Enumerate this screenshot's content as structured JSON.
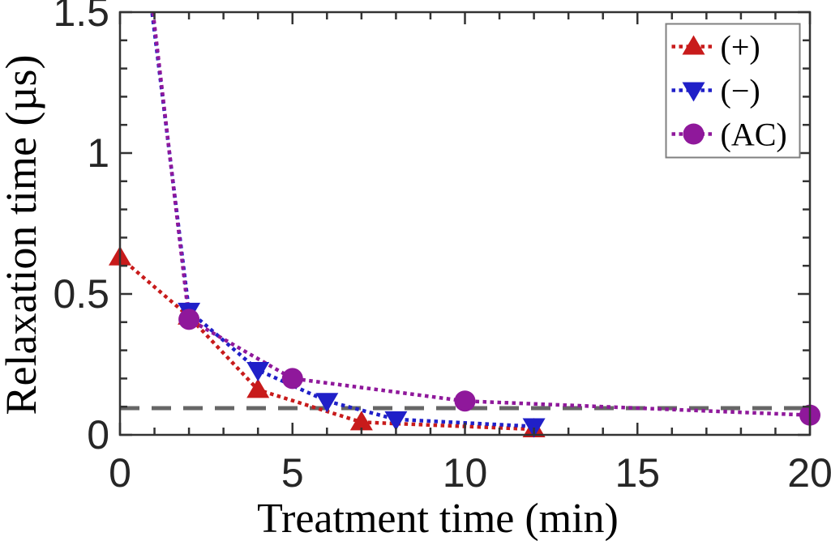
{
  "figure": {
    "background_color": "#ffffff",
    "axes_color": "#333333",
    "tick_label_color": "#262626",
    "label_color": "#000000"
  },
  "chart_data": {
    "type": "line",
    "title": "",
    "xlabel": "Treatment time (min)",
    "ylabel": "Relaxation time (µs)",
    "xlim": [
      0,
      20
    ],
    "ylim": [
      0,
      1.5
    ],
    "x_major_ticks": [
      0,
      5,
      10,
      15,
      20
    ],
    "x_tick_labels": [
      "0",
      "5",
      "10",
      "15",
      "20"
    ],
    "x_minor_step": 1,
    "y_major_ticks": [
      0,
      0.5,
      1,
      1.5
    ],
    "y_tick_labels": [
      "0",
      "0.5",
      "1",
      "1.5"
    ],
    "y_minor_step": 0.1,
    "grid": false,
    "legend": {
      "position": "top-right",
      "border_color": "#808080",
      "background": "#ffffff"
    },
    "series": [
      {
        "name": "(+)",
        "marker": "triangle-up",
        "color": "#C81B1B",
        "line_style": "dotted",
        "x": [
          0,
          2,
          4,
          7,
          12
        ],
        "y": [
          0.63,
          0.42,
          0.16,
          0.045,
          0.02
        ]
      },
      {
        "name": "(−)",
        "marker": "triangle-down",
        "color": "#2020C8",
        "line_style": "dotted",
        "clipped_at_top": true,
        "x": [
          0,
          2,
          4,
          6,
          8,
          12
        ],
        "y": [
          2.42,
          0.44,
          0.23,
          0.12,
          0.055,
          0.03
        ]
      },
      {
        "name": "(AC)",
        "marker": "circle",
        "color": "#8F189B",
        "line_style": "dotted",
        "clipped_at_top": true,
        "x": [
          0,
          2,
          5,
          10,
          20
        ],
        "y": [
          2.5,
          0.41,
          0.2,
          0.12,
          0.07
        ]
      }
    ],
    "reference_line": {
      "y": 0.095,
      "style": "dashed",
      "color": "#666666"
    }
  }
}
